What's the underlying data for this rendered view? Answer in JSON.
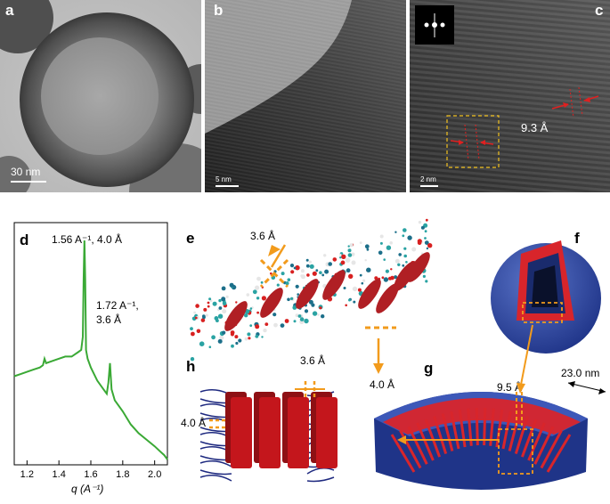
{
  "panels": {
    "a": {
      "label": "a",
      "scalebar": "30 nm"
    },
    "b": {
      "label": "b",
      "scalebar": "5 nm"
    },
    "c": {
      "label": "c",
      "scalebar": "2 nm",
      "spacing": "9.3 Å"
    },
    "d": {
      "label": "d",
      "peak1": "1.56 A⁻¹, 4.0 Å",
      "peak2a": "1.72 A⁻¹,",
      "peak2b": "3.6 Å"
    },
    "e": {
      "label": "e",
      "d1": "3.6 Å",
      "d2": "4.0 Å"
    },
    "f": {
      "label": "f"
    },
    "g": {
      "label": "g",
      "d1": "9.5 Å",
      "d2": "23.0 nm"
    },
    "h": {
      "label": "h",
      "d1": "3.6 Å",
      "d2": "4.0 Å"
    }
  },
  "chart_data": {
    "type": "line",
    "xlabel": "q (A⁻¹)",
    "ylabel": "",
    "xlim": [
      1.12,
      2.08
    ],
    "xticks": [
      "1.2",
      "1.4",
      "1.6",
      "1.8",
      "2.0"
    ],
    "series": [
      {
        "color": "#3aa935",
        "x": [
          1.12,
          1.16,
          1.2,
          1.24,
          1.28,
          1.3,
          1.31,
          1.32,
          1.36,
          1.4,
          1.44,
          1.48,
          1.5,
          1.52,
          1.54,
          1.55,
          1.555,
          1.56,
          1.565,
          1.57,
          1.58,
          1.6,
          1.64,
          1.68,
          1.7,
          1.71,
          1.72,
          1.73,
          1.75,
          1.8,
          1.85,
          1.9,
          1.95,
          2.0,
          2.03,
          2.06,
          2.08
        ],
        "y": [
          0.38,
          0.39,
          0.4,
          0.41,
          0.42,
          0.43,
          0.46,
          0.44,
          0.45,
          0.46,
          0.47,
          0.47,
          0.48,
          0.49,
          0.5,
          0.56,
          0.82,
          1.0,
          0.82,
          0.5,
          0.46,
          0.42,
          0.36,
          0.32,
          0.3,
          0.35,
          0.44,
          0.32,
          0.27,
          0.22,
          0.16,
          0.12,
          0.09,
          0.06,
          0.04,
          0.02,
          0.0
        ]
      }
    ]
  }
}
